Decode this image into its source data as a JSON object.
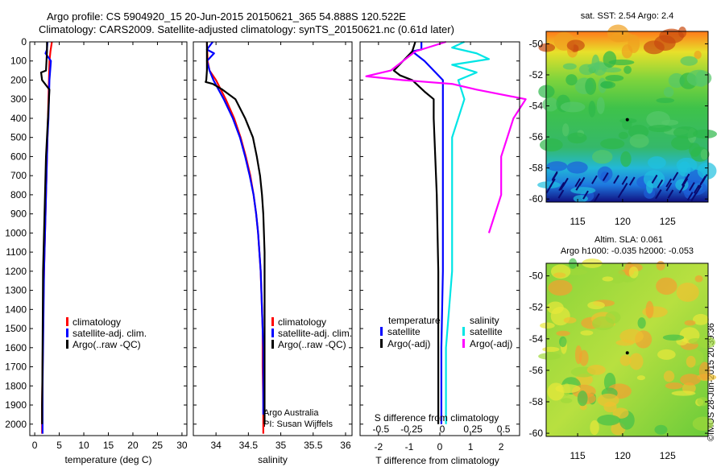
{
  "title": {
    "line1": "Argo profile: CS 5904920_15 20-Jun-2015 20150621_365 54.888S 120.522E",
    "line2": "Climatology: CARS2009. Satellite-adjusted climatology: synTS_20150621.nc (0.61d later)"
  },
  "stamp": "©IMOS 28-Jun-2015 20:39:36",
  "colors": {
    "climatology": "#ff0000",
    "satellite": "#0000ff",
    "argo": "#000000",
    "t_satellite": "#0000ff",
    "s_satellite": "#00e5e5",
    "s_argo": "#ff00ff"
  },
  "chart_data": [
    {
      "type": "line",
      "xlabel": "temperature (deg C)",
      "ylabel": "",
      "xlim": [
        -1,
        31
      ],
      "ylim": [
        2060,
        0
      ],
      "xticks": [
        0,
        5,
        10,
        15,
        20,
        25,
        30
      ],
      "yticks": [
        0,
        100,
        200,
        300,
        400,
        500,
        600,
        700,
        800,
        900,
        1000,
        1100,
        1200,
        1300,
        1400,
        1500,
        1600,
        1700,
        1800,
        1900,
        2000
      ],
      "legend": [
        "climatology",
        "satellite-adj. clim.",
        "Argo(..raw -QC)"
      ],
      "series": [
        {
          "name": "climatology",
          "x": [
            3.5,
            3.2,
            3.0,
            2.9,
            2.8,
            2.7,
            2.6,
            2.5,
            2.4,
            2.3,
            2.2,
            2.1,
            2.0,
            1.9,
            1.8,
            1.75,
            1.7,
            1.65,
            1.6,
            1.55,
            1.5,
            1.5
          ],
          "y": [
            0,
            50,
            100,
            200,
            300,
            400,
            500,
            600,
            700,
            800,
            900,
            1000,
            1100,
            1200,
            1300,
            1400,
            1500,
            1600,
            1700,
            1800,
            1900,
            2050
          ]
        },
        {
          "name": "satellite-adj. clim.",
          "x": [
            2.6,
            2.5,
            2.2,
            3.3,
            3.0,
            2.9,
            2.8,
            2.6,
            2.5,
            2.4,
            2.3,
            2.2,
            2.1,
            2.0,
            1.9,
            1.85,
            1.8,
            1.75,
            1.7,
            1.65,
            1.6,
            1.6
          ],
          "y": [
            0,
            40,
            60,
            100,
            200,
            300,
            400,
            500,
            600,
            700,
            800,
            900,
            1000,
            1100,
            1200,
            1300,
            1400,
            1500,
            1600,
            1700,
            1800,
            2050
          ]
        },
        {
          "name": "Argo(..raw -QC)",
          "x": [
            2.5,
            2.5,
            2.3,
            1.3,
            1.5,
            3.0,
            2.9,
            2.7,
            2.5,
            2.3,
            2.2,
            2.1,
            2.0,
            1.9,
            1.8,
            1.7,
            1.65,
            1.6,
            1.55,
            1.5,
            1.5
          ],
          "y": [
            0,
            50,
            150,
            160,
            200,
            250,
            300,
            400,
            500,
            600,
            700,
            800,
            900,
            1000,
            1100,
            1200,
            1400,
            1600,
            1800,
            1900,
            2000
          ]
        }
      ]
    },
    {
      "type": "line",
      "xlabel": "salinity",
      "xlim": [
        33.65,
        36.1
      ],
      "ylim": [
        2060,
        0
      ],
      "xticks": [
        34,
        34.5,
        35,
        35.5,
        36
      ],
      "legend": [
        "climatology",
        "satellite-adj. clim.",
        "Argo(..raw -QC)"
      ],
      "annotation": [
        "Argo Australia",
        "PI: Susan Wijffels"
      ],
      "series": [
        {
          "name": "climatology",
          "x": [
            33.86,
            33.87,
            33.9,
            34.0,
            34.15,
            34.28,
            34.38,
            34.46,
            34.53,
            34.58,
            34.62,
            34.65,
            34.67,
            34.69,
            34.7,
            34.71,
            34.72,
            34.72,
            34.73,
            34.73
          ],
          "y": [
            0,
            100,
            150,
            200,
            300,
            400,
            500,
            600,
            700,
            800,
            900,
            1000,
            1100,
            1200,
            1300,
            1400,
            1500,
            1700,
            1900,
            2050
          ]
        },
        {
          "name": "satellite-adj. clim.",
          "x": [
            33.95,
            33.86,
            33.97,
            33.86,
            33.9,
            33.96,
            34.12,
            34.26,
            34.37,
            34.45,
            34.52,
            34.58,
            34.62,
            34.65,
            34.67,
            34.69,
            34.7,
            34.71,
            34.72,
            34.73,
            34.73,
            34.73
          ],
          "y": [
            0,
            40,
            60,
            100,
            150,
            200,
            300,
            400,
            500,
            600,
            700,
            800,
            900,
            1000,
            1100,
            1200,
            1300,
            1400,
            1500,
            1600,
            1800,
            1950
          ]
        },
        {
          "name": "Argo(..raw -QC)",
          "x": [
            33.86,
            33.86,
            33.85,
            33.84,
            33.95,
            34.1,
            34.3,
            34.45,
            34.57,
            34.63,
            34.68,
            34.71,
            34.73,
            34.74,
            34.75,
            34.75,
            34.75
          ],
          "y": [
            0,
            150,
            200,
            210,
            220,
            250,
            300,
            400,
            500,
            600,
            700,
            800,
            900,
            1000,
            1100,
            1500,
            2000
          ]
        }
      ]
    },
    {
      "type": "line",
      "xlabel": "T difference from climatology",
      "xlabel_top": "S difference from climatology",
      "xlim": [
        -2.6,
        2.6
      ],
      "xticks_T": [
        -2,
        -1,
        0,
        1,
        2
      ],
      "xticks_S": [
        "-0.5",
        "-0.25",
        "0",
        "0.25",
        "0.5"
      ],
      "ylim": [
        2060,
        0
      ],
      "legend_headers": [
        "temperature",
        "salinity"
      ],
      "legend": [
        "satellite",
        "Argo(-adj)",
        "satellite",
        "Argo(-adj)"
      ],
      "series": [
        {
          "name": "temperature satellite",
          "x": [
            -0.6,
            -0.6,
            -0.9,
            -0.5,
            0.1,
            0.1,
            0.1,
            0.1,
            0.05,
            0.05
          ],
          "y": [
            0,
            40,
            50,
            100,
            200,
            400,
            800,
            1200,
            1600,
            2000
          ]
        },
        {
          "name": "temperature Argo(-adj)",
          "x": [
            -0.8,
            -0.9,
            -1.5,
            -1.3,
            -0.9,
            -0.5,
            -0.2,
            -0.2,
            -0.1,
            -0.05,
            -0.05,
            -0.05
          ],
          "y": [
            0,
            50,
            150,
            175,
            200,
            260,
            300,
            400,
            800,
            1200,
            1600,
            2000
          ]
        },
        {
          "name": "salinity satellite",
          "x": [
            0.2,
            0.1,
            0.3,
            0.4,
            0.1,
            0.3,
            0.15,
            0.2,
            0.1,
            0.1,
            0.1,
            0.05,
            0.05
          ],
          "y": [
            0,
            30,
            60,
            90,
            120,
            160,
            200,
            300,
            500,
            800,
            1200,
            1600,
            2000
          ]
        },
        {
          "name": "salinity Argo(-adj)",
          "x": [
            0.05,
            -0.2,
            -0.3,
            -0.4,
            -0.6,
            -0.3,
            0.1,
            0.3,
            0.7,
            0.6,
            0.5,
            0.5,
            0.4
          ],
          "y": [
            0,
            50,
            100,
            150,
            180,
            200,
            220,
            250,
            300,
            400,
            600,
            800,
            1000
          ]
        }
      ]
    },
    {
      "type": "heatmap",
      "title": "sat. SST: 2.54 Argo: 2.4",
      "xticks": [
        115,
        120,
        125
      ],
      "yticks": [
        -50,
        -52,
        -54,
        -56,
        -58,
        -60
      ],
      "xlim": [
        111.5,
        129.5
      ],
      "ylim": [
        -60.2,
        -49.2
      ],
      "marker": {
        "x": 120.52,
        "y": -54.89
      }
    },
    {
      "type": "heatmap",
      "title": "Altim. SLA: 0.061",
      "subtitle": "Argo h1000: -0.035 h2000: -0.053",
      "xticks": [
        115,
        120,
        125
      ],
      "yticks": [
        -50,
        -52,
        -54,
        -56,
        -58,
        -60
      ],
      "xlim": [
        111.5,
        129.5
      ],
      "ylim": [
        -60.2,
        -49.2
      ],
      "marker": {
        "x": 120.52,
        "y": -54.89
      }
    }
  ]
}
